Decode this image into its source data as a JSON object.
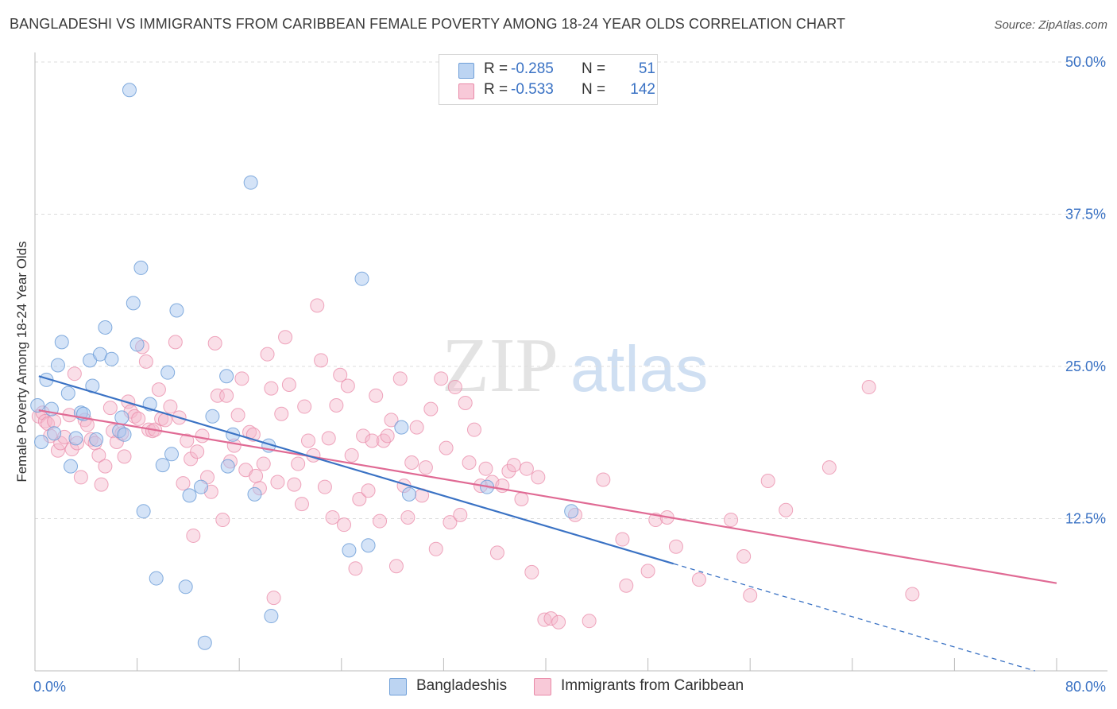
{
  "header": {
    "title": "BANGLADESHI VS IMMIGRANTS FROM CARIBBEAN FEMALE POVERTY AMONG 18-24 YEAR OLDS CORRELATION CHART",
    "source": "Source: ZipAtlas.com"
  },
  "watermark": {
    "zip": "ZIP",
    "atlas": "atlas"
  },
  "legend": {
    "r_label": "R =",
    "n_label": "N =",
    "rows": [
      {
        "r": "-0.285",
        "n": "51"
      },
      {
        "r": "-0.533",
        "n": "142"
      }
    ]
  },
  "colors": {
    "bangladeshi_fill": "#a9c8ef",
    "bangladeshi_stroke": "#6f9fd8",
    "bangladeshi_line": "#3a72c4",
    "caribbean_fill": "#f5b8cb",
    "caribbean_stroke": "#e98aa8",
    "caribbean_line": "#e06a94",
    "tick_text": "#3a72c4",
    "grid": "#dcdcdc"
  },
  "chart_data": {
    "type": "scatter",
    "title": "BANGLADESHI VS IMMIGRANTS FROM CARIBBEAN FEMALE POVERTY AMONG 18-24 YEAR OLDS CORRELATION CHART",
    "ylabel": "Female Poverty Among 18-24 Year Olds",
    "xlabel": "",
    "xlim": [
      0,
      80
    ],
    "ylim": [
      0,
      50
    ],
    "x_tick_labels": [
      "0.0%",
      "80.0%"
    ],
    "y_ticks": [
      12.5,
      25.0,
      37.5,
      50.0
    ],
    "y_tick_labels": [
      "12.5%",
      "25.0%",
      "37.5%",
      "50.0%"
    ],
    "grid": "horizontal dashed",
    "legend_position": "top-center",
    "series": [
      {
        "name": "Bangladeshis",
        "r": -0.285,
        "n": 51,
        "trend": {
          "x0": 0.3,
          "y0": 24.2,
          "x1": 50.0,
          "y1": 8.8,
          "dashed_to_x": 78.3,
          "dashed_to_y": 0.0
        },
        "points": [
          [
            0.2,
            21.8
          ],
          [
            0.5,
            18.8
          ],
          [
            0.9,
            23.9
          ],
          [
            1.3,
            21.5
          ],
          [
            1.5,
            19.5
          ],
          [
            1.8,
            25.1
          ],
          [
            2.1,
            27.0
          ],
          [
            2.6,
            22.8
          ],
          [
            2.8,
            16.8
          ],
          [
            3.2,
            19.1
          ],
          [
            3.6,
            21.2
          ],
          [
            3.8,
            21.1
          ],
          [
            4.3,
            25.5
          ],
          [
            4.5,
            23.4
          ],
          [
            4.8,
            19.0
          ],
          [
            5.1,
            26.0
          ],
          [
            5.5,
            28.2
          ],
          [
            6.0,
            25.6
          ],
          [
            6.6,
            19.7
          ],
          [
            6.8,
            20.8
          ],
          [
            7.0,
            19.4
          ],
          [
            7.4,
            47.7
          ],
          [
            7.7,
            30.2
          ],
          [
            8.0,
            26.8
          ],
          [
            8.3,
            33.1
          ],
          [
            8.5,
            13.1
          ],
          [
            9.0,
            21.9
          ],
          [
            9.5,
            7.6
          ],
          [
            10.0,
            16.9
          ],
          [
            10.4,
            24.5
          ],
          [
            10.7,
            17.8
          ],
          [
            11.1,
            29.6
          ],
          [
            11.8,
            6.9
          ],
          [
            12.1,
            14.4
          ],
          [
            13.0,
            15.1
          ],
          [
            13.3,
            2.3
          ],
          [
            13.9,
            20.9
          ],
          [
            15.0,
            24.2
          ],
          [
            15.1,
            16.8
          ],
          [
            15.5,
            19.4
          ],
          [
            16.9,
            40.1
          ],
          [
            17.2,
            14.5
          ],
          [
            18.3,
            18.5
          ],
          [
            18.5,
            4.5
          ],
          [
            24.6,
            9.9
          ],
          [
            25.6,
            32.2
          ],
          [
            26.1,
            10.3
          ],
          [
            28.7,
            20.0
          ],
          [
            29.3,
            14.5
          ],
          [
            35.4,
            15.1
          ],
          [
            42.0,
            13.1
          ]
        ]
      },
      {
        "name": "Immigrants from Caribbean",
        "r": -0.533,
        "n": 142,
        "trend": {
          "x0": 0.3,
          "y0": 21.4,
          "x1": 80.0,
          "y1": 7.2
        },
        "points": [
          [
            0.3,
            20.9
          ],
          [
            0.6,
            21.2
          ],
          [
            0.8,
            20.5
          ],
          [
            1.0,
            20.3
          ],
          [
            1.2,
            19.3
          ],
          [
            1.5,
            20.5
          ],
          [
            1.8,
            18.1
          ],
          [
            2.0,
            18.7
          ],
          [
            2.3,
            19.2
          ],
          [
            2.7,
            21.0
          ],
          [
            2.9,
            18.2
          ],
          [
            3.1,
            24.4
          ],
          [
            3.3,
            18.7
          ],
          [
            3.6,
            15.9
          ],
          [
            3.9,
            20.6
          ],
          [
            4.1,
            20.2
          ],
          [
            4.4,
            19.0
          ],
          [
            4.7,
            18.7
          ],
          [
            5.0,
            17.7
          ],
          [
            5.2,
            15.3
          ],
          [
            5.5,
            16.8
          ],
          [
            5.9,
            21.6
          ],
          [
            6.1,
            19.7
          ],
          [
            6.4,
            18.8
          ],
          [
            6.8,
            19.5
          ],
          [
            7.0,
            17.6
          ],
          [
            7.3,
            22.1
          ],
          [
            7.5,
            21.3
          ],
          [
            7.8,
            20.9
          ],
          [
            8.1,
            20.7
          ],
          [
            8.4,
            26.6
          ],
          [
            8.7,
            25.4
          ],
          [
            8.9,
            19.8
          ],
          [
            9.2,
            19.7
          ],
          [
            9.4,
            19.8
          ],
          [
            9.7,
            23.1
          ],
          [
            9.9,
            20.7
          ],
          [
            10.2,
            20.6
          ],
          [
            10.6,
            21.7
          ],
          [
            11.0,
            27.0
          ],
          [
            11.3,
            20.8
          ],
          [
            11.6,
            15.4
          ],
          [
            11.9,
            18.9
          ],
          [
            12.2,
            17.4
          ],
          [
            12.4,
            11.1
          ],
          [
            12.7,
            18.0
          ],
          [
            13.1,
            19.3
          ],
          [
            13.5,
            15.9
          ],
          [
            13.8,
            14.7
          ],
          [
            14.1,
            26.9
          ],
          [
            14.3,
            22.6
          ],
          [
            14.7,
            12.4
          ],
          [
            15.0,
            22.6
          ],
          [
            15.3,
            17.2
          ],
          [
            15.6,
            18.5
          ],
          [
            15.9,
            21.0
          ],
          [
            16.2,
            24.0
          ],
          [
            16.5,
            16.5
          ],
          [
            16.8,
            19.6
          ],
          [
            17.1,
            19.4
          ],
          [
            17.3,
            16.0
          ],
          [
            17.6,
            15.0
          ],
          [
            17.9,
            17.0
          ],
          [
            18.2,
            26.0
          ],
          [
            18.5,
            23.2
          ],
          [
            18.7,
            6.0
          ],
          [
            19.0,
            15.5
          ],
          [
            19.3,
            21.1
          ],
          [
            19.6,
            27.4
          ],
          [
            19.9,
            23.5
          ],
          [
            20.3,
            15.3
          ],
          [
            20.6,
            17.0
          ],
          [
            20.9,
            13.7
          ],
          [
            21.1,
            21.7
          ],
          [
            21.4,
            18.9
          ],
          [
            21.8,
            17.7
          ],
          [
            22.1,
            30.0
          ],
          [
            22.4,
            25.5
          ],
          [
            22.7,
            15.1
          ],
          [
            23.0,
            19.1
          ],
          [
            23.3,
            12.6
          ],
          [
            23.6,
            21.8
          ],
          [
            23.9,
            24.3
          ],
          [
            24.2,
            12.0
          ],
          [
            24.5,
            23.4
          ],
          [
            24.8,
            17.7
          ],
          [
            25.1,
            8.4
          ],
          [
            25.4,
            14.1
          ],
          [
            25.7,
            19.3
          ],
          [
            26.1,
            14.8
          ],
          [
            26.4,
            18.9
          ],
          [
            26.7,
            22.6
          ],
          [
            27.0,
            12.3
          ],
          [
            27.3,
            18.9
          ],
          [
            27.6,
            19.3
          ],
          [
            27.9,
            20.6
          ],
          [
            28.3,
            8.6
          ],
          [
            28.6,
            24.0
          ],
          [
            28.9,
            15.2
          ],
          [
            29.2,
            12.6
          ],
          [
            29.5,
            17.1
          ],
          [
            29.9,
            20.0
          ],
          [
            30.3,
            14.4
          ],
          [
            30.6,
            16.7
          ],
          [
            31.0,
            21.5
          ],
          [
            31.4,
            10.0
          ],
          [
            31.8,
            24.0
          ],
          [
            32.2,
            18.3
          ],
          [
            32.5,
            12.2
          ],
          [
            32.9,
            23.3
          ],
          [
            33.3,
            12.8
          ],
          [
            33.7,
            22.0
          ],
          [
            34.0,
            17.1
          ],
          [
            34.4,
            19.8
          ],
          [
            34.9,
            15.2
          ],
          [
            35.3,
            16.6
          ],
          [
            35.8,
            15.5
          ],
          [
            36.2,
            9.7
          ],
          [
            36.6,
            15.2
          ],
          [
            37.1,
            16.4
          ],
          [
            37.5,
            16.9
          ],
          [
            38.1,
            14.1
          ],
          [
            38.5,
            16.6
          ],
          [
            38.9,
            8.1
          ],
          [
            39.4,
            15.9
          ],
          [
            39.9,
            4.2
          ],
          [
            40.4,
            4.3
          ],
          [
            41.0,
            4.0
          ],
          [
            42.3,
            12.8
          ],
          [
            43.4,
            4.1
          ],
          [
            44.5,
            15.7
          ],
          [
            46.0,
            10.8
          ],
          [
            46.3,
            7.0
          ],
          [
            48.0,
            8.2
          ],
          [
            48.6,
            12.4
          ],
          [
            49.5,
            12.6
          ],
          [
            50.2,
            10.2
          ],
          [
            52.0,
            7.5
          ],
          [
            54.5,
            12.4
          ],
          [
            55.5,
            9.4
          ],
          [
            56.0,
            6.2
          ],
          [
            57.4,
            15.6
          ],
          [
            58.8,
            13.2
          ],
          [
            62.2,
            16.7
          ],
          [
            65.3,
            23.3
          ],
          [
            68.7,
            6.3
          ]
        ]
      }
    ]
  },
  "bottom_legend": {
    "items": [
      {
        "label": "Bangladeshis"
      },
      {
        "label": "Immigrants from Caribbean"
      }
    ]
  }
}
